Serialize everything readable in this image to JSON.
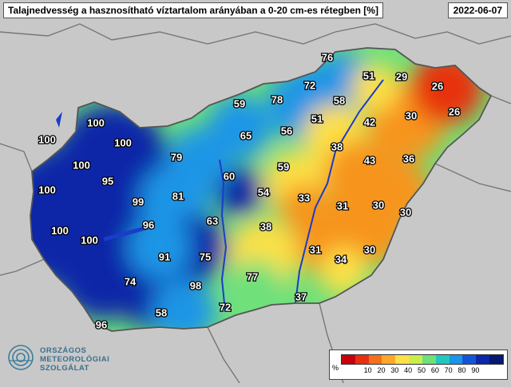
{
  "header": {
    "title": "Talajnedvesség a hasznosítható víztartalom arányában a 0-20 cm-es rétegben [%]",
    "date": "2022-06-07"
  },
  "logo": {
    "line1": "ORSZÁGOS",
    "line2": "METEOROLÓGIAI",
    "line3": "SZOLGÁLAT"
  },
  "legend": {
    "unit": "%",
    "ticks": [
      "10",
      "20",
      "30",
      "40",
      "50",
      "60",
      "70",
      "80",
      "90"
    ],
    "colors": [
      "#c8000a",
      "#e83010",
      "#f5701c",
      "#fca82a",
      "#fde047",
      "#c9ee4c",
      "#6fe07a",
      "#22c8c0",
      "#1b95e6",
      "#1455d8",
      "#0a28a8",
      "#061870"
    ]
  },
  "map": {
    "colors": {
      "background": "#c8c8c8",
      "country_border": "#555555",
      "river": "#1a3cc8",
      "very_dry": "#e83010",
      "dry": "#f7941d",
      "medium": "#fde047",
      "moist": "#6fe07a",
      "wet": "#1b95e6",
      "very_wet": "#0a28a8"
    },
    "values": [
      "76",
      "51",
      "29",
      "26",
      "72",
      "78",
      "59",
      "58",
      "30",
      "26",
      "51",
      "42",
      "65",
      "56",
      "100",
      "100",
      "100",
      "38",
      "79",
      "100",
      "95",
      "60",
      "59",
      "43",
      "36",
      "100",
      "54",
      "33",
      "99",
      "81",
      "31",
      "30",
      "30",
      "96",
      "63",
      "38",
      "100",
      "100",
      "91",
      "75",
      "31",
      "34",
      "30",
      "74",
      "98",
      "77",
      "37",
      "72",
      "58",
      "96"
    ]
  }
}
